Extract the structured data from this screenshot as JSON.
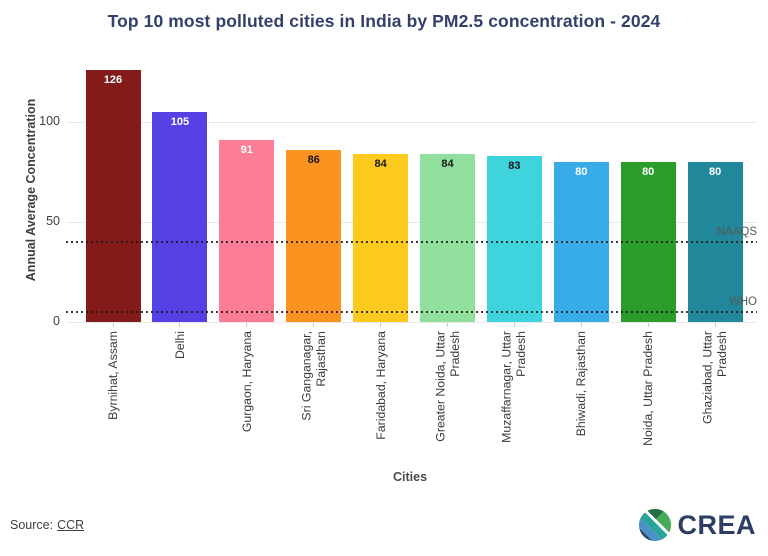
{
  "chart_data": {
    "type": "bar",
    "title": "Top 10 most polluted cities in India by PM2.5 concentration - 2024",
    "xlabel": "Cities",
    "ylabel": "Annual Average Concentration",
    "categories": [
      "Byrnihat, Assam",
      "Delhi",
      "Gurgaon, Haryana",
      "Sri Ganganagar,\nRajasthan",
      "Faridabad, Haryana",
      "Greater Noida, Uttar\nPradesh",
      "Muzaffarnagar, Uttar\nPradesh",
      "Bhiwadi, Rajasthan",
      "Noida, Uttar Pradesh",
      "Ghaziabad, Uttar\nPradesh"
    ],
    "values": [
      126,
      105,
      91,
      86,
      84,
      84,
      83,
      80,
      80,
      80
    ],
    "bar_colors": [
      "#841b1b",
      "#5540e4",
      "#fd7d96",
      "#fa9320",
      "#feca1d",
      "#90df9c",
      "#3ed3dd",
      "#37ace9",
      "#2a9c2a",
      "#21879a"
    ],
    "value_label_colors": [
      "#ffffff",
      "#ffffff",
      "#ffffff",
      "#1a1a1a",
      "#1a1a1a",
      "#1a1a1a",
      "#1a1a1a",
      "#ffffff",
      "#ffffff",
      "#ffffff"
    ],
    "yticks": [
      0,
      50,
      100
    ],
    "ylim": [
      0,
      133
    ],
    "grid": true,
    "legend": false,
    "reference_lines": [
      {
        "label": "NAAQS",
        "value": 40
      },
      {
        "label": "WHO",
        "value": 5
      }
    ]
  },
  "source": {
    "prefix": "Source:",
    "link_text": "CCR"
  },
  "logo": {
    "text": "CREA"
  }
}
